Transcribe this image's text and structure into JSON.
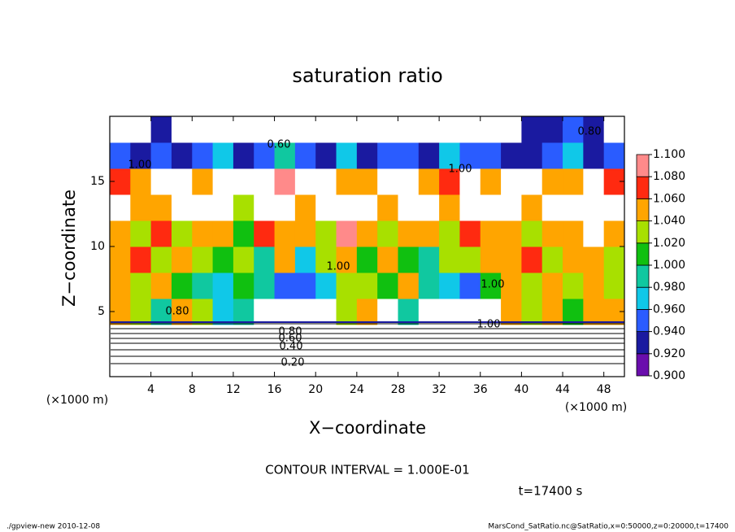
{
  "chart_data": {
    "type": "heatmap",
    "title": "saturation ratio",
    "x_label": "X−coordinate",
    "y_label": "Z−coordinate",
    "x_unit": "(×1000 m)",
    "y_unit": "(×1000 m)",
    "xlim": [
      0,
      50
    ],
    "ylim": [
      0,
      20
    ],
    "xticks": [
      4,
      8,
      12,
      16,
      20,
      24,
      28,
      32,
      36,
      40,
      44,
      48
    ],
    "yticks": [
      5,
      10,
      15
    ],
    "x": [
      1,
      3,
      5,
      7,
      9,
      11,
      13,
      15,
      17,
      19,
      21,
      23,
      25,
      27,
      29,
      31,
      33,
      35,
      37,
      39,
      41,
      43,
      45,
      47,
      49
    ],
    "y": [
      1,
      3,
      5,
      7,
      9,
      11,
      13,
      15,
      17,
      19
    ],
    "values": [
      [
        0.25,
        0.25,
        0.25,
        0.25,
        0.25,
        0.25,
        0.25,
        0.25,
        0.25,
        0.25,
        0.25,
        0.25,
        0.25,
        0.25,
        0.25,
        0.25,
        0.25,
        0.25,
        0.25,
        0.25,
        0.25,
        0.25,
        0.25,
        0.25,
        0.25
      ],
      [
        0.7,
        0.7,
        0.7,
        0.7,
        0.7,
        0.7,
        0.7,
        0.7,
        0.7,
        0.7,
        0.7,
        0.7,
        0.7,
        0.7,
        0.7,
        0.7,
        0.7,
        0.7,
        0.7,
        0.7,
        0.7,
        0.7,
        0.7,
        0.7,
        0.7
      ],
      [
        1.06,
        1.04,
        0.99,
        1.05,
        1.03,
        0.97,
        1.0,
        0.86,
        0.85,
        0.88,
        0.87,
        1.04,
        1.06,
        0.86,
        1.0,
        0.87,
        0.85,
        0.86,
        0.88,
        1.06,
        1.04,
        1.05,
        1.02,
        1.06,
        1.05
      ],
      [
        1.05,
        1.03,
        1.06,
        1.02,
        0.99,
        0.97,
        1.01,
        1.0,
        0.96,
        0.95,
        0.97,
        1.04,
        1.03,
        1.02,
        1.06,
        1.0,
        0.97,
        0.95,
        1.02,
        1.05,
        1.04,
        1.06,
        1.03,
        1.05,
        1.04
      ],
      [
        1.05,
        1.07,
        1.03,
        1.06,
        1.04,
        1.02,
        1.04,
        1.0,
        1.05,
        0.98,
        1.04,
        1.06,
        1.02,
        1.05,
        1.01,
        1.0,
        1.04,
        1.03,
        1.06,
        1.05,
        1.07,
        1.04,
        1.06,
        1.05,
        1.03
      ],
      [
        1.06,
        1.04,
        1.07,
        1.03,
        1.06,
        1.05,
        1.02,
        1.07,
        1.06,
        1.05,
        1.03,
        1.08,
        1.06,
        1.04,
        1.05,
        1.06,
        1.03,
        1.07,
        1.05,
        1.06,
        1.04,
        1.06,
        1.05,
        0.87,
        1.06
      ],
      [
        0.86,
        1.05,
        1.06,
        0.85,
        0.86,
        0.88,
        1.04,
        0.86,
        0.85,
        1.05,
        0.86,
        0.85,
        0.86,
        1.06,
        0.85,
        0.86,
        1.05,
        0.85,
        0.86,
        0.87,
        1.05,
        0.85,
        0.86,
        0.88,
        0.86
      ],
      [
        1.07,
        1.06,
        0.86,
        0.85,
        1.05,
        0.84,
        0.86,
        0.85,
        1.08,
        0.86,
        0.87,
        1.06,
        1.05,
        0.86,
        0.85,
        1.06,
        1.07,
        0.85,
        1.05,
        0.86,
        0.85,
        1.06,
        1.05,
        0.86,
        1.07
      ],
      [
        0.95,
        0.94,
        0.96,
        0.93,
        0.95,
        0.97,
        0.94,
        0.96,
        0.99,
        0.95,
        0.94,
        0.97,
        0.93,
        0.95,
        0.96,
        0.94,
        0.98,
        0.95,
        0.96,
        0.94,
        0.93,
        0.95,
        0.97,
        0.94,
        0.96
      ],
      [
        0.8,
        0.85,
        0.93,
        0.88,
        0.8,
        0.8,
        0.78,
        0.8,
        0.82,
        0.85,
        0.8,
        0.8,
        0.88,
        0.8,
        0.82,
        0.8,
        0.8,
        0.84,
        0.8,
        0.86,
        0.92,
        0.94,
        0.95,
        0.93,
        0.85
      ]
    ],
    "colorbar_lim": [
      0.9,
      1.1
    ],
    "colorbar_ticks": [
      {
        "value": 0.9,
        "label": "0.900"
      },
      {
        "value": 0.92,
        "label": "0.920"
      },
      {
        "value": 0.94,
        "label": "0.940"
      },
      {
        "value": 0.96,
        "label": "0.960"
      },
      {
        "value": 0.98,
        "label": "0.980"
      },
      {
        "value": 1.0,
        "label": "1.000"
      },
      {
        "value": 1.02,
        "label": "1.020"
      },
      {
        "value": 1.04,
        "label": "1.040"
      },
      {
        "value": 1.06,
        "label": "1.060"
      },
      {
        "value": 1.08,
        "label": "1.080"
      },
      {
        "value": 1.1,
        "label": "1.100"
      }
    ],
    "colors": [
      "#6a0dad",
      "#1a1aa0",
      "#2a5cff",
      "#10c8e8",
      "#10c8a0",
      "#10c010",
      "#a8e000",
      "#ffa500",
      "#ff2a10",
      "#ff8a8a"
    ],
    "contour_labels": [
      "0.80",
      "0.60",
      "1.00",
      "1.00",
      "1.00",
      "1.00",
      "1.00",
      "0.80",
      "0.80",
      "0.60",
      "0.40",
      "0.20"
    ],
    "contour_interval": "CONTOUR INTERVAL = 1.000E-01",
    "time_label": "t=17400 s",
    "footer_left": "./gpview-new   2010-12-08",
    "footer_right": "MarsCond_SatRatio.nc@SatRatio,x=0:50000,z=0:20000,t=17400"
  }
}
